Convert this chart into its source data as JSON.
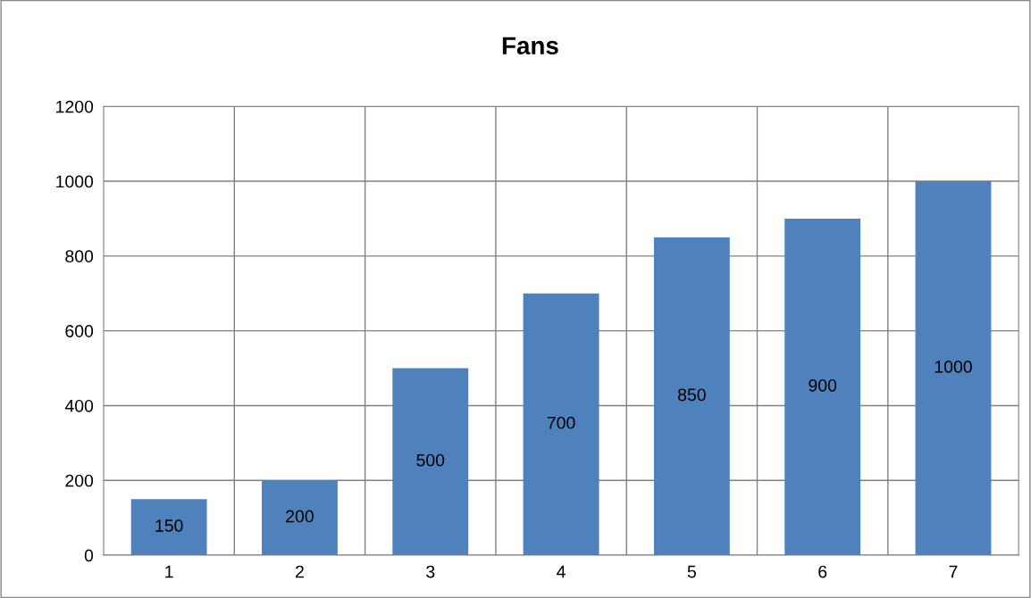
{
  "chart_data": {
    "type": "bar",
    "title": "Fans",
    "categories": [
      "1",
      "2",
      "3",
      "4",
      "5",
      "6",
      "7"
    ],
    "values": [
      150,
      200,
      500,
      700,
      850,
      900,
      1000
    ],
    "color": "#4f81bd",
    "ylim": [
      0,
      1200
    ],
    "yticks": [
      0,
      200,
      400,
      600,
      800,
      1000,
      1200
    ],
    "grid": true,
    "data_labels": true
  }
}
